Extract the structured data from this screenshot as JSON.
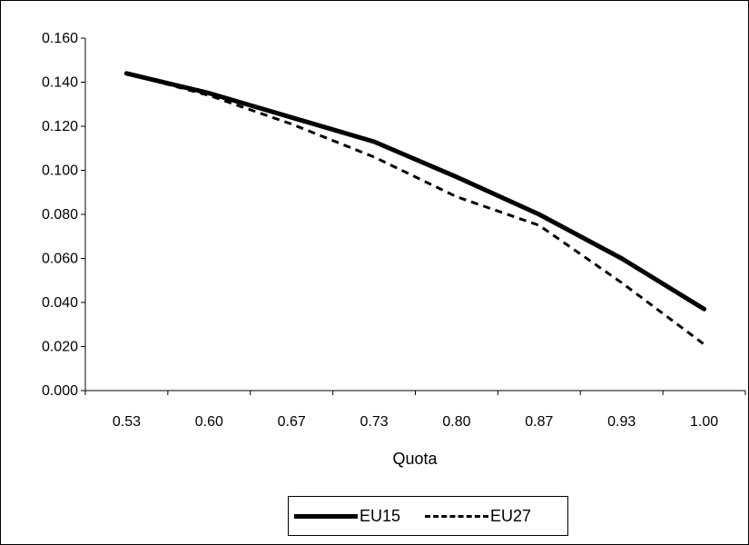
{
  "chart_data": {
    "type": "line",
    "title": "",
    "xlabel": "Quota",
    "ylabel": "",
    "categories": [
      "0.53",
      "0.60",
      "0.67",
      "0.73",
      "0.80",
      "0.87",
      "0.93",
      "1.00"
    ],
    "ylim": [
      0,
      0.16
    ],
    "yticks": [
      "0.000",
      "0.020",
      "0.040",
      "0.060",
      "0.080",
      "0.100",
      "0.120",
      "0.140",
      "0.160"
    ],
    "grid": false,
    "legend_position": "bottom",
    "series": [
      {
        "name": "EU15",
        "values": [
          0.144,
          0.135,
          0.124,
          0.113,
          0.097,
          0.08,
          0.06,
          0.037
        ],
        "style": "solid",
        "color": "#000000"
      },
      {
        "name": "EU27",
        "values": [
          0.144,
          0.134,
          0.121,
          0.106,
          0.088,
          0.075,
          0.049,
          0.021
        ],
        "style": "dashed",
        "color": "#000000"
      }
    ]
  }
}
